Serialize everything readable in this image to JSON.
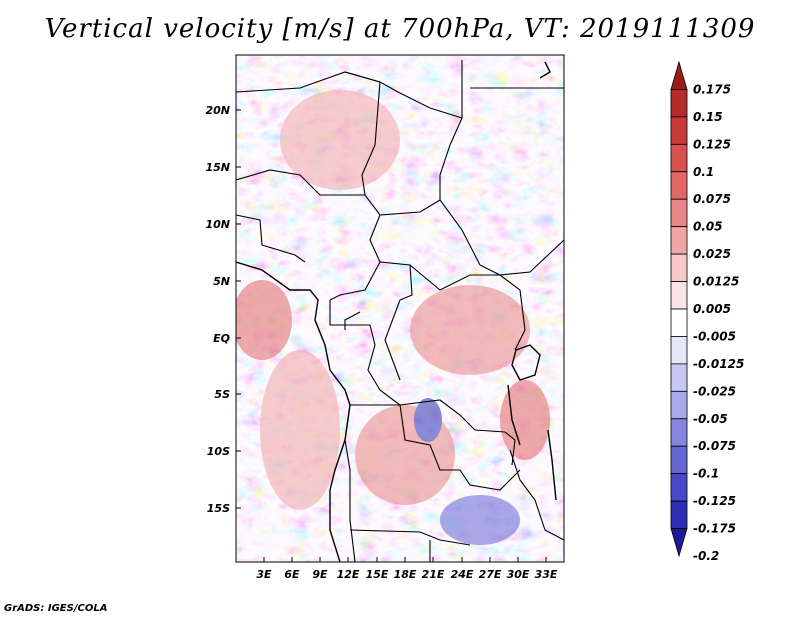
{
  "title": "Vertical velocity [m/s] at 700hPa, VT: 2019111309",
  "credit": "GrADS: IGES/COLA",
  "lat_labels": [
    "20N",
    "15N",
    "10N",
    "5N",
    "EQ",
    "5S",
    "10S",
    "15S"
  ],
  "lon_labels": [
    "3E",
    "6E",
    "9E",
    "12E",
    "15E",
    "18E",
    "21E",
    "24E",
    "27E",
    "30E",
    "33E"
  ],
  "colorbar": {
    "labels": [
      "0.175",
      "0.15",
      "0.125",
      "0.1",
      "0.075",
      "0.05",
      "0.025",
      "0.0125",
      "0.005",
      "-0.005",
      "-0.0125",
      "-0.025",
      "-0.05",
      "-0.075",
      "-0.1",
      "-0.125",
      "-0.175",
      "-0.2"
    ],
    "colors": [
      "#9b1b1b",
      "#b52a2a",
      "#c93b3b",
      "#d85050",
      "#e06868",
      "#e88686",
      "#f0a6a6",
      "#f6c8c8",
      "#fbe4e4",
      "#ffffff",
      "#e6e6fb",
      "#c8c8f4",
      "#a8a8ec",
      "#8686e2",
      "#6565d6",
      "#4848c8",
      "#2e2eb4",
      "#1a1a9a"
    ]
  }
}
